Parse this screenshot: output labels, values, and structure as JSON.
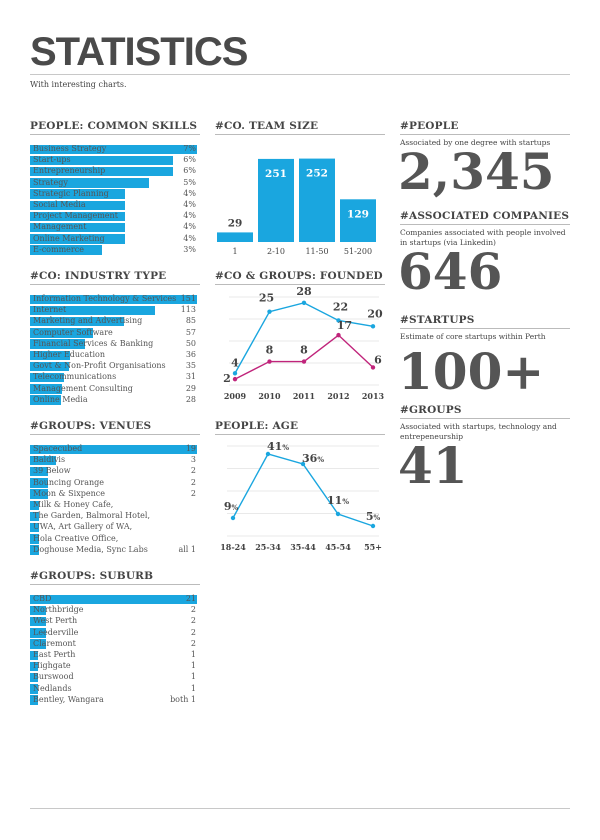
{
  "title": "STATISTICS",
  "subtitle": "With interesting charts.",
  "colors": {
    "accent": "#1aa6df",
    "magenta": "#c0247b",
    "text": "#555555"
  },
  "sections": {
    "skills": "PEOPLE: COMMON SKILLS",
    "team_size": "#CO. TEAM SIZE",
    "people": "#PEOPLE",
    "industry": "#CO: INDUSTRY TYPE",
    "founded": "#CO & GROUPS: FOUNDED",
    "associated": "#ASSOCIATED COMPANIES",
    "startups": "#STARTUPS",
    "venues": "#GROUPS: VENUES",
    "age": "PEOPLE: AGE",
    "groups": "#GROUPS",
    "suburb": "#GROUPS: SUBURB"
  },
  "stats": {
    "people": {
      "desc": "Associated by one degree with startups",
      "value": "2,345"
    },
    "associated": {
      "desc": "Companies associated with people involved in startups (via Linkedin)",
      "value": "646"
    },
    "startups": {
      "desc": "Estimate of core startups within Perth",
      "value": "100+"
    },
    "groups": {
      "desc": "Associated with startups, technology and entrepeneurship",
      "value": "41"
    }
  },
  "chart_data": [
    {
      "id": "skills",
      "type": "bar",
      "orientation": "horizontal",
      "categories": [
        "Business Strategy",
        "Start-ups",
        "Entrepreneurship",
        "Strategy",
        "Strategic Planning",
        "Social Media",
        "Project Management",
        "Management",
        "Online Marketing",
        "E-commerce"
      ],
      "values": [
        7,
        6,
        6,
        5,
        4,
        4,
        4,
        4,
        4,
        3
      ],
      "labels": [
        "7%",
        "6%",
        "6%",
        "5%",
        "4%",
        "4%",
        "4%",
        "4%",
        "4%",
        "3%"
      ],
      "max": 7
    },
    {
      "id": "team_size",
      "type": "bar",
      "categories": [
        "1",
        "2-10",
        "11-50",
        "51-200"
      ],
      "values": [
        29,
        251,
        252,
        129
      ],
      "ylim": [
        0,
        290
      ]
    },
    {
      "id": "industry",
      "type": "bar",
      "orientation": "horizontal",
      "categories": [
        "Information Technology & Services",
        "Internet",
        "Marketing and Advertising",
        "Computer Software",
        "Financial Services & Banking",
        "Higher Education",
        "Govt & Non-Profit Organisations",
        "Telecommunications",
        "Management Consulting",
        "Online Media"
      ],
      "values": [
        151,
        113,
        85,
        57,
        50,
        36,
        35,
        31,
        29,
        28
      ],
      "labels": [
        "151",
        "113",
        "85",
        "57",
        "50",
        "36",
        "35",
        "31",
        "29",
        "28"
      ],
      "max": 151
    },
    {
      "id": "founded",
      "type": "line",
      "x": [
        "2009",
        "2010",
        "2011",
        "2012",
        "2013"
      ],
      "series": [
        {
          "values": [
            4,
            25,
            28,
            22,
            20
          ],
          "color": "#1aa6df"
        },
        {
          "values": [
            2,
            8,
            8,
            17,
            6
          ],
          "color": "#c0247b"
        }
      ],
      "ylim": [
        0,
        30
      ]
    },
    {
      "id": "venues",
      "type": "bar",
      "orientation": "horizontal",
      "categories": [
        "Spacecubed",
        "Baldivis",
        "39 Below",
        "Bouncing Orange",
        "Moon & Sixpence",
        "Milk & Honey Cafe,",
        "The Garden, Balmoral Hotel,",
        "UWA, Art Gallery of WA,",
        "Hola Creative Office,",
        "Doghouse Media, Sync Labs"
      ],
      "values": [
        19,
        3,
        2,
        2,
        2,
        1,
        1,
        1,
        1,
        1
      ],
      "labels": [
        "19",
        "3",
        "2",
        "2",
        "2",
        "",
        "",
        "",
        "",
        "all 1"
      ],
      "max": 19
    },
    {
      "id": "age",
      "type": "line",
      "x": [
        "18-24",
        "25-34",
        "35-44",
        "45-54",
        "55+"
      ],
      "series": [
        {
          "values": [
            9,
            41,
            36,
            11,
            5
          ],
          "color": "#1aa6df"
        }
      ],
      "labels": [
        "9%",
        "41%",
        "36%",
        "11%",
        "5%"
      ],
      "ylim": [
        0,
        45
      ]
    },
    {
      "id": "suburb",
      "type": "bar",
      "orientation": "horizontal",
      "categories": [
        "CBD",
        "Northbridge",
        "West Perth",
        "Leederville",
        "Claremont",
        "East Perth",
        "Highgate",
        "Burswood",
        "Nedlands",
        "Bentley, Wangara"
      ],
      "values": [
        21,
        2,
        2,
        2,
        2,
        1,
        1,
        1,
        1,
        1
      ],
      "labels": [
        "21",
        "2",
        "2",
        "2",
        "2",
        "1",
        "1",
        "1",
        "1",
        "both 1"
      ],
      "max": 21
    }
  ]
}
